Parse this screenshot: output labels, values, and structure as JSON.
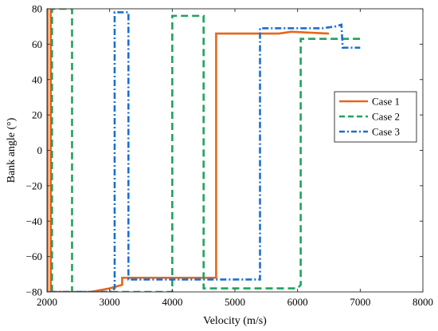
{
  "chart_data": {
    "type": "line",
    "xlabel": "Velocity (m/s)",
    "ylabel": "Bank angle (°)",
    "xlim": [
      2000,
      8000
    ],
    "ylim": [
      -80,
      80
    ],
    "xticks": [
      "2000",
      "3000",
      "4000",
      "5000",
      "6000",
      "7000",
      "8000"
    ],
    "yticks": [
      "80",
      "60",
      "40",
      "20",
      "0",
      "−20",
      "−40",
      "−60",
      "−80"
    ],
    "legend_placement": "right",
    "grid": false,
    "series": [
      {
        "name": "Case 1",
        "color": "#e8661a",
        "style": "solid",
        "points": [
          [
            2010,
            80
          ],
          [
            2010,
            -80
          ],
          [
            2060,
            -80
          ],
          [
            2060,
            80
          ],
          [
            2060,
            -80
          ],
          [
            2700,
            -80
          ],
          [
            3000,
            -78
          ],
          [
            3100,
            -77
          ],
          [
            3200,
            -76
          ],
          [
            3200,
            -72
          ],
          [
            4700,
            -72
          ],
          [
            4700,
            66
          ],
          [
            5700,
            66
          ],
          [
            5900,
            67
          ],
          [
            6500,
            66
          ]
        ]
      },
      {
        "name": "Case 2",
        "color": "#1fa35a",
        "style": "dashed",
        "points": [
          [
            2080,
            -80
          ],
          [
            2080,
            80
          ],
          [
            2400,
            80
          ],
          [
            2400,
            -80
          ],
          [
            3500,
            -80
          ],
          [
            4000,
            -80
          ],
          [
            4000,
            76
          ],
          [
            4500,
            76
          ],
          [
            4500,
            -78
          ],
          [
            6000,
            -78
          ],
          [
            6050,
            -76
          ],
          [
            6050,
            63
          ],
          [
            7000,
            63
          ]
        ]
      },
      {
        "name": "Case 3",
        "color": "#1b6fd1",
        "style": "dashdot",
        "points": [
          [
            2050,
            -80
          ],
          [
            3000,
            -80
          ],
          [
            3050,
            -79
          ],
          [
            3080,
            -78
          ],
          [
            3080,
            78
          ],
          [
            3300,
            78
          ],
          [
            3300,
            -73
          ],
          [
            5400,
            -73
          ],
          [
            5400,
            69
          ],
          [
            6400,
            69
          ],
          [
            6600,
            70
          ],
          [
            6700,
            71
          ],
          [
            6720,
            58
          ],
          [
            7000,
            58
          ]
        ]
      }
    ]
  }
}
